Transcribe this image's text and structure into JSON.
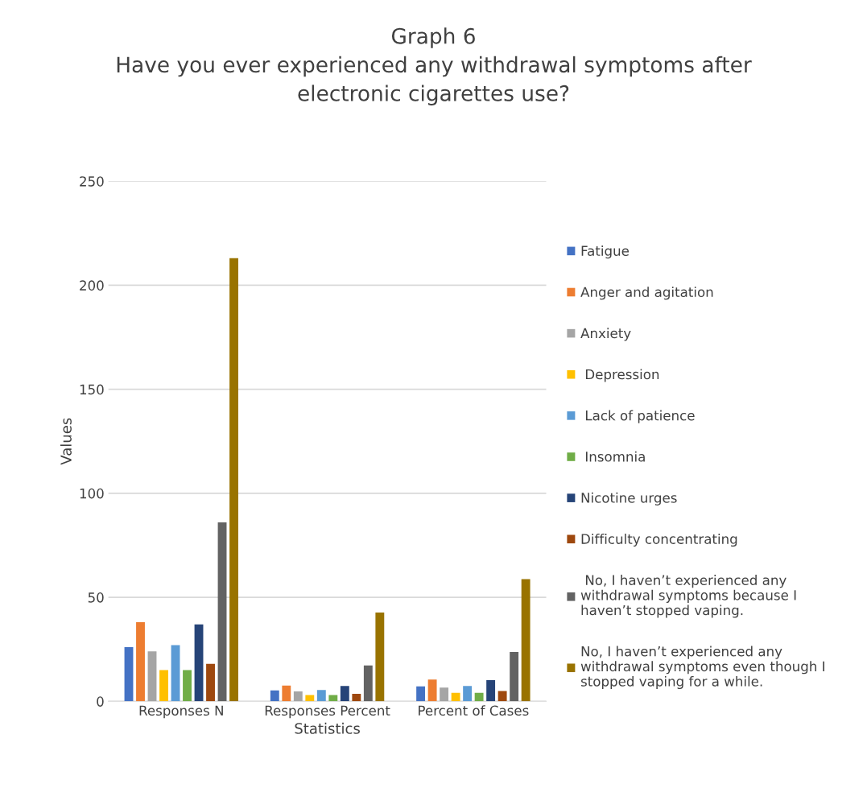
{
  "chart_data": {
    "type": "bar",
    "title": "Graph 6\nHave you ever experienced any withdrawal symptoms after\nelectronic cigarettes use?",
    "xlabel": "Statistics",
    "ylabel": "Values",
    "categories": [
      "Responses N",
      "Responses Percent",
      "Percent of Cases"
    ],
    "series": [
      {
        "name": "Fatigue",
        "color": "#4472c4",
        "values": [
          26,
          5.2,
          7.2
        ]
      },
      {
        "name": "Anger and agitation",
        "color": "#ed7d31",
        "values": [
          38,
          7.6,
          10.5
        ]
      },
      {
        "name": "Anxiety",
        "color": "#a5a5a5",
        "values": [
          24,
          4.8,
          6.6
        ]
      },
      {
        "name": " Depression",
        "color": "#ffc000",
        "values": [
          15,
          3.0,
          4.1
        ]
      },
      {
        "name": " Lack of patience",
        "color": "#5b9bd5",
        "values": [
          27,
          5.4,
          7.4
        ]
      },
      {
        "name": " Insomnia",
        "color": "#70ad47",
        "values": [
          15,
          3.0,
          4.1
        ]
      },
      {
        "name": "Nicotine urges",
        "color": "#264478",
        "values": [
          37,
          7.4,
          10.2
        ]
      },
      {
        "name": "Difficulty concentrating",
        "color": "#9e480e",
        "values": [
          18,
          3.6,
          5.0
        ]
      },
      {
        "name": " No, I haven’t experienced any\nwithdrawal symptoms because I\nhaven’t stopped vaping.",
        "color": "#636363",
        "values": [
          86,
          17.2,
          23.7
        ]
      },
      {
        "name": "No, I haven’t experienced any\nwithdrawal symptoms even though I\nstopped vaping for a while.",
        "color": "#997300",
        "values": [
          213,
          42.7,
          58.7
        ]
      }
    ],
    "ylim": [
      0,
      250
    ],
    "yticks": [
      0,
      50,
      100,
      150,
      200,
      250
    ],
    "grid": "y",
    "legend": "right"
  }
}
